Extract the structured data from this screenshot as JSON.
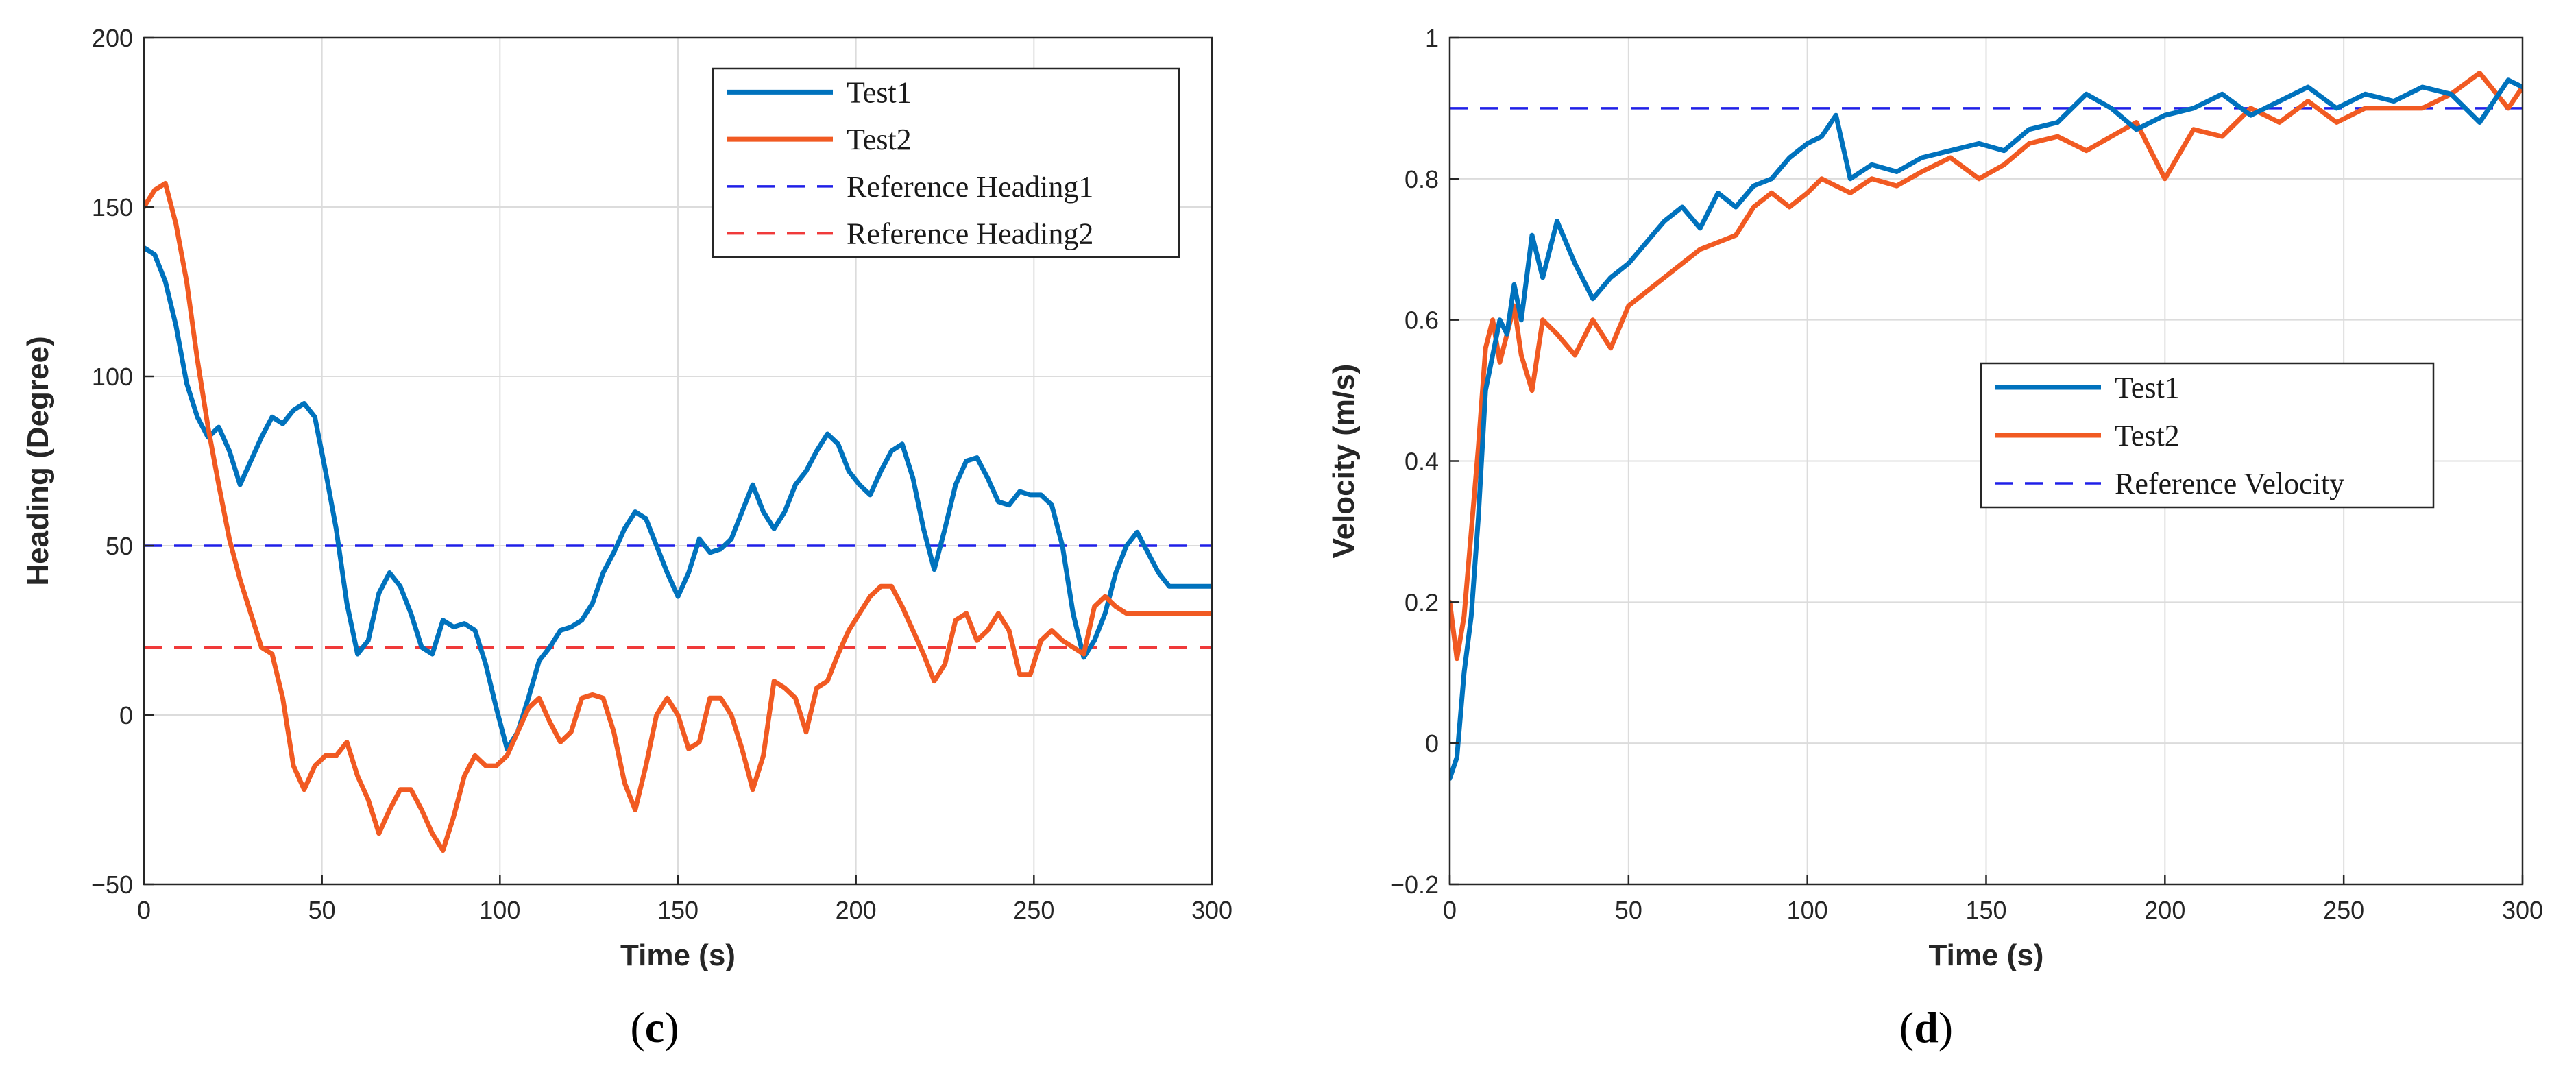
{
  "colors": {
    "test1": "#0072BD",
    "test2": "#F15A22",
    "ref_blue": "#2020E8",
    "ref_red": "#F03A3A"
  },
  "chart_data": [
    {
      "type": "line",
      "panel": "c",
      "caption": "(c)",
      "caption_letter": "c",
      "title": "",
      "xlabel": "Time (s)",
      "ylabel": "Heading (Degree)",
      "xlim": [
        0,
        300
      ],
      "ylim": [
        -50,
        200
      ],
      "xticks": [
        0,
        50,
        100,
        150,
        200,
        250,
        300
      ],
      "yticks": [
        -50,
        0,
        50,
        100,
        150,
        200
      ],
      "ytick_labels": [
        "−50",
        "0",
        "50",
        "100",
        "150",
        "200"
      ],
      "grid": true,
      "legend_location": "top-right",
      "series": [
        {
          "name": "Test1",
          "style": "solid",
          "color_key": "test1",
          "x": [
            0,
            3,
            6,
            9,
            12,
            15,
            18,
            21,
            24,
            27,
            30,
            33,
            36,
            39,
            42,
            45,
            48,
            51,
            54,
            57,
            60,
            63,
            66,
            69,
            72,
            75,
            78,
            81,
            84,
            87,
            90,
            93,
            96,
            99,
            102,
            105,
            108,
            111,
            114,
            117,
            120,
            123,
            126,
            129,
            132,
            135,
            138,
            141,
            144,
            147,
            150,
            153,
            156,
            159,
            162,
            165,
            168,
            171,
            174,
            177,
            180,
            183,
            186,
            189,
            192,
            195,
            198,
            201,
            204,
            207,
            210,
            213,
            216,
            219,
            222,
            225,
            228,
            231,
            234,
            237,
            240,
            243,
            246,
            249,
            252,
            255,
            258,
            261,
            264,
            267,
            270,
            273,
            276,
            279,
            282,
            285,
            288,
            291,
            294,
            297,
            300
          ],
          "values": [
            138,
            136,
            128,
            115,
            98,
            88,
            82,
            85,
            78,
            68,
            75,
            82,
            88,
            86,
            90,
            92,
            88,
            72,
            55,
            33,
            18,
            22,
            36,
            42,
            38,
            30,
            20,
            18,
            28,
            26,
            27,
            25,
            15,
            2,
            -10,
            -5,
            5,
            16,
            20,
            25,
            26,
            28,
            33,
            42,
            48,
            55,
            60,
            58,
            50,
            42,
            35,
            42,
            52,
            48,
            49,
            52,
            60,
            68,
            60,
            55,
            60,
            68,
            72,
            78,
            83,
            80,
            72,
            68,
            65,
            72,
            78,
            80,
            70,
            55,
            43,
            55,
            68,
            75,
            76,
            70,
            63,
            62,
            66,
            65,
            65,
            62,
            50,
            30,
            17,
            22,
            30,
            42,
            50,
            54,
            48,
            42,
            38,
            38,
            38,
            38,
            38
          ]
        },
        {
          "name": "Test2",
          "style": "solid",
          "color_key": "test2",
          "x": [
            0,
            3,
            6,
            9,
            12,
            15,
            18,
            21,
            24,
            27,
            30,
            33,
            36,
            39,
            42,
            45,
            48,
            51,
            54,
            57,
            60,
            63,
            66,
            69,
            72,
            75,
            78,
            81,
            84,
            87,
            90,
            93,
            96,
            99,
            102,
            105,
            108,
            111,
            114,
            117,
            120,
            123,
            126,
            129,
            132,
            135,
            138,
            141,
            144,
            147,
            150,
            153,
            156,
            159,
            162,
            165,
            168,
            171,
            174,
            177,
            180,
            183,
            186,
            189,
            192,
            195,
            198,
            201,
            204,
            207,
            210,
            213,
            216,
            219,
            222,
            225,
            228,
            231,
            234,
            237,
            240,
            243,
            246,
            249,
            252,
            255,
            258,
            261,
            264,
            267,
            270,
            273,
            276,
            279,
            282,
            285,
            288,
            291,
            294,
            297,
            300
          ],
          "values": [
            150,
            155,
            157,
            145,
            128,
            105,
            85,
            68,
            52,
            40,
            30,
            20,
            18,
            5,
            -15,
            -22,
            -15,
            -12,
            -12,
            -8,
            -18,
            -25,
            -35,
            -28,
            -22,
            -22,
            -28,
            -35,
            -40,
            -30,
            -18,
            -12,
            -15,
            -15,
            -12,
            -5,
            2,
            5,
            -2,
            -8,
            -5,
            5,
            6,
            5,
            -5,
            -20,
            -28,
            -15,
            0,
            5,
            0,
            -10,
            -8,
            5,
            5,
            0,
            -10,
            -22,
            -12,
            10,
            8,
            5,
            -5,
            8,
            10,
            18,
            25,
            30,
            35,
            38,
            38,
            32,
            25,
            18,
            10,
            15,
            28,
            30,
            22,
            25,
            30,
            25,
            12,
            12,
            22,
            25,
            22,
            20,
            18,
            32,
            35,
            32,
            30,
            30,
            30,
            30,
            30,
            30,
            30,
            30,
            30
          ]
        },
        {
          "name": "Reference Heading1",
          "style": "dashed",
          "color_key": "ref_blue",
          "x": [
            0,
            300
          ],
          "values": [
            50,
            50
          ]
        },
        {
          "name": "Reference Heading2",
          "style": "dashed",
          "color_key": "ref_red",
          "x": [
            0,
            300
          ],
          "values": [
            20,
            20
          ]
        }
      ]
    },
    {
      "type": "line",
      "panel": "d",
      "caption": "(d)",
      "caption_letter": "d",
      "title": "",
      "xlabel": "Time (s)",
      "ylabel": "Velocity (m/s)",
      "xlim": [
        0,
        300
      ],
      "ylim": [
        -0.2,
        1
      ],
      "xticks": [
        0,
        50,
        100,
        150,
        200,
        250,
        300
      ],
      "yticks": [
        -0.2,
        0,
        0.2,
        0.4,
        0.6,
        0.8,
        1
      ],
      "ytick_labels": [
        "−0.2",
        "0",
        "0.2",
        "0.4",
        "0.6",
        "0.8",
        "1"
      ],
      "grid": true,
      "legend_location": "center-right",
      "series": [
        {
          "name": "Test1",
          "style": "solid",
          "color_key": "test1",
          "x": [
            0,
            2,
            4,
            6,
            8,
            10,
            12,
            14,
            16,
            18,
            20,
            23,
            26,
            30,
            35,
            40,
            45,
            50,
            55,
            60,
            65,
            70,
            75,
            80,
            85,
            90,
            95,
            100,
            104,
            108,
            112,
            118,
            125,
            132,
            140,
            148,
            155,
            162,
            170,
            178,
            185,
            192,
            200,
            208,
            216,
            224,
            232,
            240,
            248,
            256,
            264,
            272,
            280,
            288,
            296,
            300
          ],
          "values": [
            -0.05,
            -0.02,
            0.1,
            0.18,
            0.32,
            0.5,
            0.55,
            0.6,
            0.58,
            0.65,
            0.6,
            0.72,
            0.66,
            0.74,
            0.68,
            0.63,
            0.66,
            0.68,
            0.71,
            0.74,
            0.76,
            0.73,
            0.78,
            0.76,
            0.79,
            0.8,
            0.83,
            0.85,
            0.86,
            0.89,
            0.8,
            0.82,
            0.81,
            0.83,
            0.84,
            0.85,
            0.84,
            0.87,
            0.88,
            0.92,
            0.9,
            0.87,
            0.89,
            0.9,
            0.92,
            0.89,
            0.91,
            0.93,
            0.9,
            0.92,
            0.91,
            0.93,
            0.92,
            0.88,
            0.94,
            0.93
          ]
        },
        {
          "name": "Test2",
          "style": "solid",
          "color_key": "test2",
          "x": [
            0,
            2,
            4,
            6,
            8,
            10,
            12,
            14,
            16,
            18,
            20,
            23,
            26,
            30,
            35,
            40,
            45,
            50,
            55,
            60,
            65,
            70,
            75,
            80,
            85,
            90,
            95,
            100,
            104,
            108,
            112,
            118,
            125,
            132,
            140,
            148,
            155,
            162,
            170,
            178,
            185,
            192,
            200,
            208,
            216,
            224,
            232,
            240,
            248,
            256,
            264,
            272,
            280,
            288,
            296,
            300
          ],
          "values": [
            0.2,
            0.12,
            0.18,
            0.3,
            0.42,
            0.56,
            0.6,
            0.54,
            0.58,
            0.62,
            0.55,
            0.5,
            0.6,
            0.58,
            0.55,
            0.6,
            0.56,
            0.62,
            0.64,
            0.66,
            0.68,
            0.7,
            0.71,
            0.72,
            0.76,
            0.78,
            0.76,
            0.78,
            0.8,
            0.79,
            0.78,
            0.8,
            0.79,
            0.81,
            0.83,
            0.8,
            0.82,
            0.85,
            0.86,
            0.84,
            0.86,
            0.88,
            0.8,
            0.87,
            0.86,
            0.9,
            0.88,
            0.91,
            0.88,
            0.9,
            0.9,
            0.9,
            0.92,
            0.95,
            0.9,
            0.93
          ]
        },
        {
          "name": "Reference Velocity",
          "style": "dashed",
          "color_key": "ref_blue",
          "x": [
            0,
            300
          ],
          "values": [
            0.9,
            0.9
          ]
        }
      ]
    }
  ]
}
